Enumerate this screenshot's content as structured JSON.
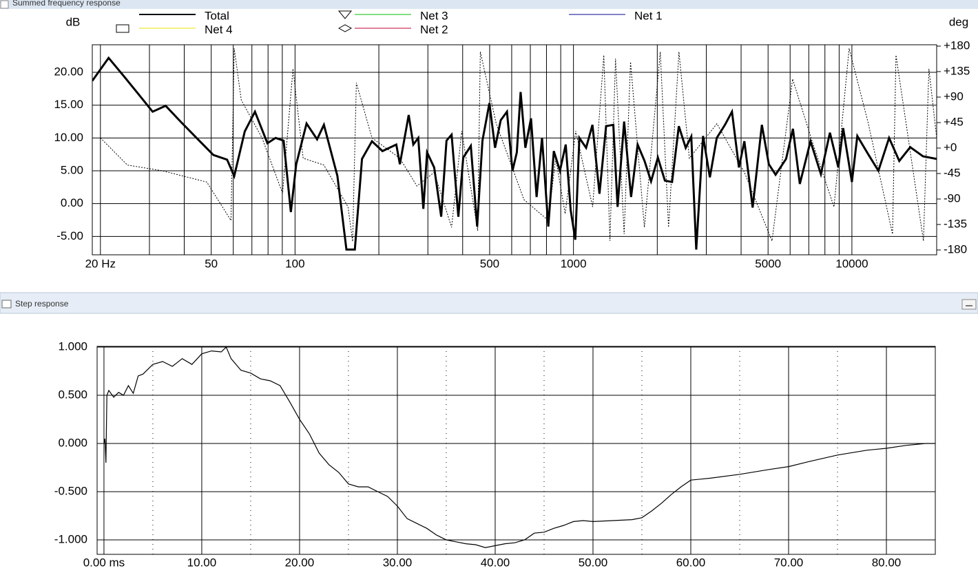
{
  "chart_data": [
    {
      "type": "line",
      "title": "Summed frequency response",
      "y_label": "dB",
      "y2_label": "deg",
      "xscale": "log",
      "xlim": [
        18.7,
        20160
      ],
      "xticks": [
        {
          "value": 20,
          "label": "20 Hz"
        },
        50,
        100,
        500,
        1000,
        5000,
        10000
      ],
      "x_minor_ticks": [
        30,
        40,
        60,
        70,
        80,
        90,
        200,
        300,
        400,
        600,
        700,
        800,
        900,
        2000,
        3000,
        4000,
        6000,
        7000,
        8000,
        9000
      ],
      "ylim": [
        -7.8,
        24.2
      ],
      "yticks": [
        {
          "value": -5,
          "label": "-5.00"
        },
        {
          "value": 0,
          "label": "0.00"
        },
        {
          "value": 5,
          "label": "5.00"
        },
        {
          "value": 10,
          "label": "10.00"
        },
        {
          "value": 15,
          "label": "15.00"
        },
        {
          "value": 20,
          "label": "20.00"
        }
      ],
      "y2lim": [
        -188.5,
        182.4
      ],
      "y2ticks": [
        {
          "value": 180,
          "label": "+180"
        },
        {
          "value": 135,
          "label": "+135"
        },
        {
          "value": 90,
          "label": "+90"
        },
        {
          "value": 45,
          "label": "+45"
        },
        {
          "value": 0,
          "label": "+0"
        },
        -45,
        -90,
        -135,
        -180
      ],
      "grid": true,
      "legend": [
        {
          "name": "Total",
          "color": "#000000",
          "marker": "none"
        },
        {
          "name": "Net 4",
          "color": "#e8e000",
          "marker": "square"
        },
        {
          "name": "Net 3",
          "color": "#00c000",
          "marker": "triangle"
        },
        {
          "name": "Net 2",
          "color": "#c00030",
          "marker": "diamond"
        },
        {
          "name": "Net 1",
          "color": "#000090",
          "marker": "none"
        }
      ],
      "series": [
        {
          "color": "#000000",
          "style": "solid",
          "x": [
            18.7,
            21.4,
            24.4,
            27,
            30.8,
            34.3,
            38.8,
            44.3,
            50.9,
            57,
            60.5,
            66,
            71.8,
            79.6,
            85.2,
            91,
            96.6,
            101,
            110,
            120,
            127,
            142,
            153,
            164,
            174,
            189,
            206,
            231,
            238,
            256,
            266,
            277,
            289,
            298,
            316,
            335,
            350,
            365,
            386,
            402,
            428,
            451,
            471,
            499,
            523,
            548,
            577,
            604,
            626,
            646,
            672,
            704,
            737,
            771,
            812,
            850,
            894,
            938,
            977,
            1015,
            1050,
            1110,
            1170,
            1240,
            1310,
            1390,
            1440,
            1520,
            1610,
            1700,
            1800,
            1900,
            2010,
            2130,
            2260,
            2390,
            2530,
            2650,
            2760,
            2920,
            3090,
            3270,
            3500,
            3710,
            3930,
            4110,
            4400,
            4750,
            5030,
            5320,
            5800,
            6140,
            6500,
            7100,
            7740,
            8340,
            8940,
            9300,
            10000,
            10460,
            11410,
            12450,
            13600,
            14800,
            16200,
            18000,
            20160
          ],
          "values": [
            18.7,
            22.2,
            19.3,
            17,
            14,
            14.9,
            12.5,
            10,
            7.4,
            6.7,
            4.2,
            11,
            14,
            9.2,
            10,
            9.6,
            -1.3,
            6,
            12.2,
            9.8,
            12,
            4.2,
            -7,
            -7,
            6.8,
            9.5,
            8,
            9,
            6,
            13.5,
            9,
            10,
            -0.8,
            7.8,
            5.5,
            -2,
            9.6,
            10.5,
            -2,
            7,
            8.8,
            -3.5,
            9.6,
            15.3,
            8.5,
            12.7,
            14,
            5,
            7.8,
            17,
            8.5,
            13,
            1,
            10,
            -3.5,
            8,
            5,
            9,
            -1,
            -5.5,
            10,
            8.5,
            12,
            1.5,
            11.8,
            12,
            -0.5,
            12.5,
            1,
            9,
            6.5,
            3.4,
            7,
            3.5,
            3.3,
            11.8,
            8.5,
            10.2,
            -7,
            10.3,
            4,
            10,
            12,
            14,
            5.5,
            9.5,
            -0.6,
            12,
            6,
            4.4,
            6.8,
            11.4,
            3,
            9.5,
            4.5,
            10.8,
            5.5,
            11.5,
            3.3,
            10.3,
            7.6,
            5,
            10,
            6.5,
            8.6,
            7.2,
            6.8
          ]
        },
        {
          "color": "#000000",
          "style": "dotted",
          "axis": "y2",
          "x": [
            20,
            25,
            33.3,
            48.2,
            58.9,
            60.5,
            64.1,
            76.1,
            90.2,
            98.3,
            107,
            127,
            155,
            161,
            166,
            189,
            238,
            274,
            316,
            365,
            397,
            453,
            463,
            528,
            664,
            812,
            863,
            934,
            1019,
            1172,
            1285,
            1352,
            1416,
            1520,
            1603,
            1798,
            2050,
            2196,
            2393,
            2607,
            3275,
            4113,
            5166,
            6125,
            7265,
            8624,
            9775,
            11460,
            13990,
            14400,
            18070,
            18900,
            20160
          ],
          "values": [
            18,
            -30,
            -40,
            -60,
            -128,
            176,
            85,
            18,
            -80,
            140,
            -18,
            -30,
            -104,
            -165,
            115,
            18,
            -18,
            -67,
            -43,
            -140,
            30,
            -146,
            170,
            43,
            -91,
            -128,
            -18,
            -116,
            30,
            -104,
            164,
            -164,
            158,
            -152,
            152,
            -140,
            170,
            -140,
            170,
            -18,
            43,
            -43,
            -164,
            122,
            6,
            -104,
            176,
            43,
            -152,
            164,
            -164,
            140,
            18
          ]
        }
      ]
    },
    {
      "type": "line",
      "title": "Step response",
      "xlim": [
        -0.7,
        85
      ],
      "xticks": [
        {
          "value": 0,
          "label": "0.00 ms"
        },
        {
          "value": 10,
          "label": "10.00"
        },
        {
          "value": 20,
          "label": "20.00"
        },
        {
          "value": 30,
          "label": "30.00"
        },
        {
          "value": 40,
          "label": "40.00"
        },
        {
          "value": 50,
          "label": "50.00"
        },
        {
          "value": 60,
          "label": "60.00"
        },
        {
          "value": 70,
          "label": "70.00"
        },
        {
          "value": 80,
          "label": "80.00"
        }
      ],
      "x_minor_ticks": [
        5,
        15,
        25,
        35,
        45,
        55,
        65,
        75
      ],
      "ylim": [
        -1.15,
        1.007
      ],
      "yticks": [
        {
          "value": 1,
          "label": "1.000"
        },
        {
          "value": 0.5,
          "label": "0.500"
        },
        {
          "value": 0,
          "label": "0.000"
        },
        {
          "value": -0.5,
          "label": "-0.500"
        },
        {
          "value": -1,
          "label": "-1.000"
        }
      ],
      "grid": true,
      "series": [
        {
          "color": "#000000",
          "style": "solid",
          "x": [
            0,
            0.1,
            0.2,
            0.3,
            0.5,
            1,
            1.5,
            2,
            2.5,
            3,
            3.5,
            4,
            5,
            6,
            7,
            8,
            9,
            10,
            11,
            12,
            12.5,
            13,
            14,
            15,
            16,
            17,
            18,
            19,
            20,
            21,
            22,
            23,
            24,
            25,
            26,
            27,
            28,
            29,
            30,
            31,
            32,
            33,
            34,
            35,
            36,
            37,
            38,
            39,
            40,
            41,
            42,
            43,
            44,
            45,
            46,
            47,
            48,
            49,
            50,
            52,
            54,
            55,
            56,
            57,
            58,
            59,
            60,
            62,
            65,
            68,
            70,
            72,
            75,
            78,
            80,
            82,
            84,
            85
          ],
          "values": [
            0,
            0.05,
            -0.2,
            0.5,
            0.55,
            0.48,
            0.53,
            0.5,
            0.6,
            0.52,
            0.7,
            0.72,
            0.82,
            0.85,
            0.8,
            0.88,
            0.82,
            0.93,
            0.96,
            0.95,
            1.0,
            0.88,
            0.76,
            0.73,
            0.67,
            0.65,
            0.6,
            0.43,
            0.25,
            0.1,
            -0.1,
            -0.22,
            -0.3,
            -0.42,
            -0.45,
            -0.45,
            -0.5,
            -0.55,
            -0.65,
            -0.78,
            -0.83,
            -0.88,
            -0.95,
            -1.0,
            -1.02,
            -1.04,
            -1.05,
            -1.08,
            -1.06,
            -1.04,
            -1.03,
            -1.0,
            -0.93,
            -0.92,
            -0.88,
            -0.85,
            -0.81,
            -0.8,
            -0.81,
            -0.8,
            -0.79,
            -0.77,
            -0.7,
            -0.62,
            -0.53,
            -0.45,
            -0.38,
            -0.36,
            -0.32,
            -0.27,
            -0.24,
            -0.19,
            -0.12,
            -0.07,
            -0.05,
            -0.02,
            0,
            0
          ]
        }
      ]
    }
  ]
}
